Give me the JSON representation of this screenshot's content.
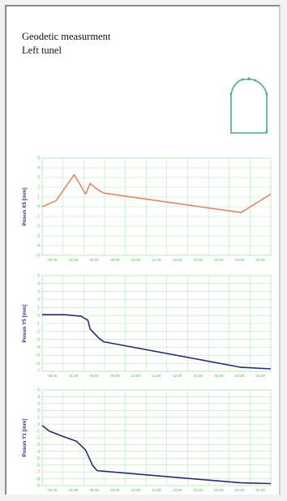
{
  "header": {
    "title": "Geodetic measurment",
    "subtitle": "Left tunel"
  },
  "colors": {
    "grid": "#b8e6b8",
    "tick": "#4fbf58",
    "axis_label": "#2b2f8c",
    "tunnel": "#4caf7a",
    "x_series": "#e0856a",
    "y_series": "#2c2a6e"
  },
  "icons": {
    "tunnel": "tunnel-cross-section-icon"
  },
  "chart_data": [
    {
      "type": "line",
      "ylabel": "Posun X5 [mm]",
      "ylim": [
        -5,
        5
      ],
      "yticks": [
        5,
        4,
        3,
        2,
        1,
        0,
        -1,
        -2,
        -3,
        -4,
        -5
      ],
      "xticks": [
        "06.06",
        "01.08",
        "08.09",
        "09.09",
        "10.09",
        "11.09",
        "12.09",
        "01.09",
        "02.09",
        "03.09",
        "04.09"
      ],
      "grid": true,
      "series": [
        {
          "x": [
            0,
            0.06,
            0.14,
            0.19,
            0.21,
            0.24,
            0.27,
            0.87,
            1.0
          ],
          "y": [
            0,
            0.6,
            3.3,
            1.3,
            2.4,
            1.8,
            1.4,
            -0.6,
            1.3
          ]
        }
      ]
    },
    {
      "type": "line",
      "ylabel": "Posun Y5 [mm]",
      "ylim": [
        -7,
        5
      ],
      "yticks": [
        5,
        4,
        3,
        2,
        1,
        0,
        -1,
        -2,
        -3,
        -4,
        -5,
        -6,
        -7
      ],
      "xticks": [
        "06.06",
        "01.08",
        "08.09",
        "09.09",
        "10.09",
        "11.09",
        "12.09",
        "01.09",
        "02.09",
        "03.09",
        "04.09"
      ],
      "grid": true,
      "series": [
        {
          "x": [
            0,
            0.1,
            0.17,
            0.2,
            0.21,
            0.25,
            0.27,
            0.87,
            1.0
          ],
          "y": [
            0.1,
            0.1,
            -0.1,
            -0.6,
            -1.7,
            -2.9,
            -3.3,
            -6.5,
            -6.7
          ]
        }
      ]
    },
    {
      "type": "line",
      "ylabel": "Posun Y1 [mm]",
      "ylim": [
        -9,
        5
      ],
      "yticks": [
        5,
        4,
        3,
        2,
        1,
        0,
        -1,
        -2,
        -3,
        -4,
        -5,
        -6,
        -7,
        -8,
        -9
      ],
      "xticks": [
        "06.06",
        "01.08",
        "08.09",
        "09.09",
        "10.09",
        "11.09",
        "12.09",
        "01.09",
        "02.09",
        "03.09",
        "04.09"
      ],
      "grid": true,
      "series": [
        {
          "x": [
            0,
            0.03,
            0.09,
            0.15,
            0.19,
            0.22,
            0.24,
            0.27,
            0.87,
            1.0
          ],
          "y": [
            -0.2,
            -1.0,
            -1.8,
            -2.5,
            -3.8,
            -6.0,
            -6.8,
            -6.9,
            -8.6,
            -8.7
          ]
        }
      ]
    }
  ]
}
